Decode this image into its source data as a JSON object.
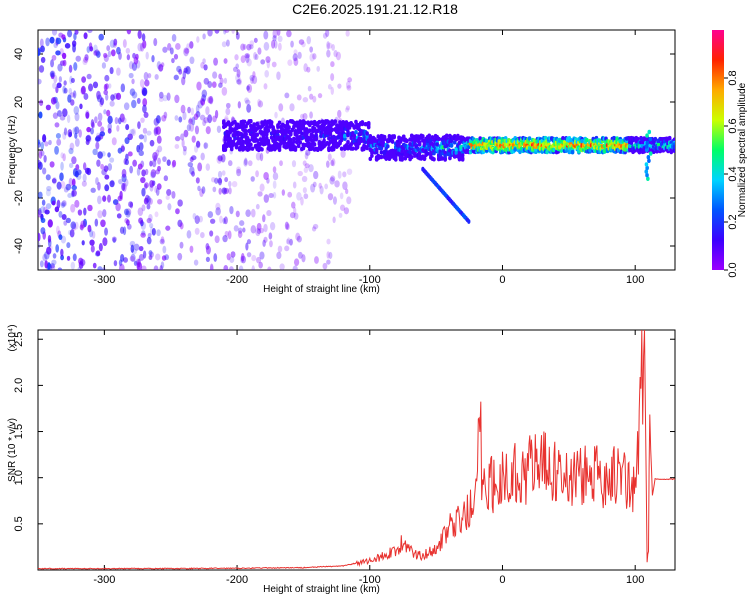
{
  "title": "C2E6.2025.191.21.12.R18",
  "colors": {
    "axis": "#000000",
    "snr_line": "#e8322f",
    "colorbar": [
      "#9b00ff",
      "#3b00ff",
      "#0055ff",
      "#00d4ff",
      "#00ff66",
      "#ccff00",
      "#ffaa00",
      "#ff2200",
      "#ff0090"
    ]
  },
  "chart_data": [
    {
      "type": "heatmap",
      "title": "",
      "xlabel": "Height of straight line (km)",
      "ylabel": "Frequency (Hz)",
      "xlim": [
        -350,
        130
      ],
      "ylim": [
        -50,
        50
      ],
      "x_ticks": [
        "-300",
        "-200",
        "-100",
        "0",
        "100"
      ],
      "y_ticks": [
        "40",
        "20",
        "0",
        "-20",
        "-40"
      ],
      "colorbar": {
        "label": "Normalized spectral amplitude",
        "range": [
          0,
          1
        ],
        "ticks": [
          "0.0",
          "0.2",
          "0.4",
          "0.6",
          "0.8"
        ]
      },
      "features": {
        "noise_region_x": [
          -350,
          -115
        ],
        "signal_band_x": [
          -210,
          130
        ],
        "signal_center_hz": 1,
        "chirp_branch": {
          "x": [
            -60,
            -25
          ],
          "y": [
            -8,
            -30
          ]
        },
        "spike_x": 110,
        "peak_amplitude_region_x": [
          -25,
          95
        ]
      }
    },
    {
      "type": "line",
      "title": "",
      "xlabel": "Height of straight line (km)",
      "ylabel": "SNR (10 * v/v)",
      "y_multiplier": "(x10⁴)",
      "xlim": [
        -350,
        130
      ],
      "ylim": [
        0,
        2.6
      ],
      "x_ticks": [
        "-300",
        "-200",
        "-100",
        "0",
        "100"
      ],
      "y_ticks": [
        "2.5",
        "2.0",
        "1.5",
        "1.0",
        "0.5"
      ],
      "series": [
        {
          "x": [
            -350,
            -300,
            -250,
            -200,
            -150,
            -120,
            -100,
            -90,
            -80,
            -75,
            -70,
            -60,
            -50,
            -45,
            -40,
            -30,
            -20,
            -17,
            -15,
            -10,
            0,
            10,
            20,
            30,
            40,
            50,
            60,
            70,
            80,
            90,
            100,
            103,
            105,
            107,
            109,
            110,
            111,
            113,
            115,
            120,
            130
          ],
          "y": [
            0.01,
            0.01,
            0.01,
            0.015,
            0.02,
            0.04,
            0.1,
            0.15,
            0.22,
            0.3,
            0.2,
            0.15,
            0.25,
            0.35,
            0.45,
            0.55,
            0.75,
            1.7,
            0.8,
            0.9,
            1.0,
            1.05,
            1.1,
            1.15,
            1.05,
            1.0,
            1.02,
            1.0,
            1.05,
            1.0,
            0.85,
            1.5,
            2.0,
            2.6,
            0.1,
            0.2,
            1.6,
            0.8,
            0.98,
            0.98,
            0.98
          ]
        }
      ]
    }
  ]
}
